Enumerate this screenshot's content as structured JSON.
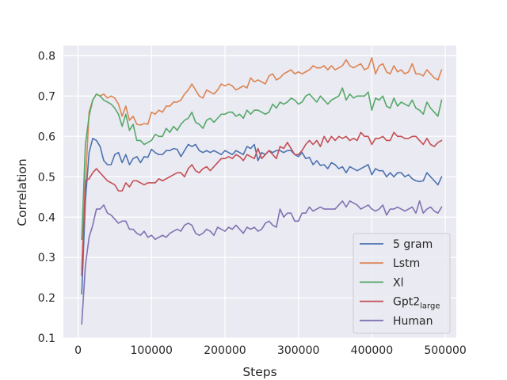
{
  "chart_data": {
    "type": "line",
    "title": "",
    "xlabel": "Steps",
    "ylabel": "Correlation",
    "xlim": [
      -20000,
      515000
    ],
    "ylim": [
      0.1,
      0.825
    ],
    "xticks": [
      0,
      100000,
      200000,
      300000,
      400000,
      500000
    ],
    "xtick_labels": [
      "0",
      "100000",
      "200000",
      "300000",
      "400000",
      "500000"
    ],
    "yticks": [
      0.1,
      0.2,
      0.3,
      0.4,
      0.5,
      0.6,
      0.7,
      0.8
    ],
    "ytick_labels": [
      "0.1",
      "0.2",
      "0.3",
      "0.4",
      "0.5",
      "0.6",
      "0.7",
      "0.8"
    ],
    "grid": true,
    "legend_position": "lower-right",
    "x": [
      5000,
      10000,
      15000,
      20000,
      25000,
      30000,
      35000,
      40000,
      45000,
      50000,
      55000,
      60000,
      65000,
      70000,
      75000,
      80000,
      85000,
      90000,
      95000,
      100000,
      105000,
      110000,
      115000,
      120000,
      125000,
      130000,
      135000,
      140000,
      145000,
      150000,
      155000,
      160000,
      165000,
      170000,
      175000,
      180000,
      185000,
      190000,
      195000,
      200000,
      205000,
      210000,
      215000,
      220000,
      225000,
      230000,
      235000,
      240000,
      245000,
      250000,
      255000,
      260000,
      265000,
      270000,
      275000,
      280000,
      285000,
      290000,
      295000,
      300000,
      305000,
      310000,
      315000,
      320000,
      325000,
      330000,
      335000,
      340000,
      345000,
      350000,
      355000,
      360000,
      365000,
      370000,
      375000,
      380000,
      385000,
      390000,
      395000,
      400000,
      405000,
      410000,
      415000,
      420000,
      425000,
      430000,
      435000,
      440000,
      445000,
      450000,
      455000,
      460000,
      465000,
      470000,
      475000,
      480000,
      485000,
      490000,
      495000
    ],
    "series": [
      {
        "name": "5 gram",
        "color": "#4c72b0",
        "values": [
          0.21,
          0.44,
          0.56,
          0.595,
          0.59,
          0.575,
          0.54,
          0.53,
          0.53,
          0.555,
          0.56,
          0.535,
          0.555,
          0.53,
          0.545,
          0.55,
          0.535,
          0.55,
          0.548,
          0.568,
          0.56,
          0.555,
          0.555,
          0.565,
          0.565,
          0.57,
          0.568,
          0.55,
          0.565,
          0.58,
          0.575,
          0.58,
          0.565,
          0.56,
          0.565,
          0.56,
          0.565,
          0.56,
          0.555,
          0.565,
          0.56,
          0.555,
          0.565,
          0.56,
          0.555,
          0.575,
          0.57,
          0.58,
          0.54,
          0.56,
          0.555,
          0.565,
          0.56,
          0.565,
          0.565,
          0.56,
          0.565,
          0.565,
          0.555,
          0.55,
          0.56,
          0.545,
          0.548,
          0.53,
          0.54,
          0.528,
          0.53,
          0.52,
          0.535,
          0.53,
          0.52,
          0.525,
          0.51,
          0.525,
          0.52,
          0.515,
          0.52,
          0.525,
          0.53,
          0.505,
          0.52,
          0.515,
          0.515,
          0.5,
          0.51,
          0.5,
          0.51,
          0.51,
          0.5,
          0.505,
          0.495,
          0.49,
          0.488,
          0.49,
          0.51,
          0.5,
          0.49,
          0.48,
          0.5
        ]
      },
      {
        "name": "Lstm",
        "color": "#dd8452",
        "values": [
          0.27,
          0.48,
          0.66,
          0.69,
          0.705,
          0.7,
          0.705,
          0.695,
          0.7,
          0.695,
          0.68,
          0.65,
          0.675,
          0.64,
          0.65,
          0.63,
          0.628,
          0.632,
          0.63,
          0.66,
          0.655,
          0.665,
          0.66,
          0.675,
          0.675,
          0.685,
          0.685,
          0.69,
          0.705,
          0.715,
          0.73,
          0.715,
          0.7,
          0.695,
          0.715,
          0.71,
          0.705,
          0.715,
          0.73,
          0.725,
          0.73,
          0.725,
          0.715,
          0.72,
          0.725,
          0.72,
          0.745,
          0.735,
          0.74,
          0.735,
          0.73,
          0.75,
          0.755,
          0.74,
          0.745,
          0.755,
          0.76,
          0.765,
          0.755,
          0.76,
          0.755,
          0.76,
          0.765,
          0.775,
          0.77,
          0.77,
          0.775,
          0.765,
          0.775,
          0.765,
          0.77,
          0.775,
          0.79,
          0.775,
          0.77,
          0.775,
          0.78,
          0.765,
          0.77,
          0.795,
          0.755,
          0.775,
          0.78,
          0.76,
          0.755,
          0.775,
          0.76,
          0.765,
          0.755,
          0.76,
          0.78,
          0.755,
          0.755,
          0.75,
          0.765,
          0.755,
          0.745,
          0.74,
          0.765
        ]
      },
      {
        "name": "Xl",
        "color": "#55a868",
        "values": [
          0.345,
          0.58,
          0.65,
          0.69,
          0.705,
          0.7,
          0.69,
          0.685,
          0.68,
          0.67,
          0.655,
          0.625,
          0.655,
          0.615,
          0.63,
          0.59,
          0.59,
          0.58,
          0.585,
          0.59,
          0.605,
          0.6,
          0.6,
          0.62,
          0.61,
          0.625,
          0.615,
          0.63,
          0.64,
          0.645,
          0.66,
          0.635,
          0.63,
          0.62,
          0.64,
          0.645,
          0.635,
          0.645,
          0.655,
          0.655,
          0.66,
          0.66,
          0.65,
          0.655,
          0.645,
          0.665,
          0.655,
          0.665,
          0.665,
          0.66,
          0.655,
          0.66,
          0.68,
          0.67,
          0.685,
          0.68,
          0.685,
          0.695,
          0.69,
          0.68,
          0.685,
          0.7,
          0.705,
          0.695,
          0.685,
          0.7,
          0.69,
          0.68,
          0.69,
          0.695,
          0.7,
          0.72,
          0.69,
          0.705,
          0.695,
          0.7,
          0.7,
          0.7,
          0.71,
          0.665,
          0.695,
          0.69,
          0.7,
          0.675,
          0.67,
          0.695,
          0.675,
          0.685,
          0.68,
          0.675,
          0.69,
          0.67,
          0.665,
          0.655,
          0.685,
          0.67,
          0.66,
          0.65,
          0.69
        ]
      },
      {
        "name": "Gpt2",
        "name_subscript": "large",
        "color": "#c44e52",
        "values": [
          0.255,
          0.49,
          0.495,
          0.51,
          0.52,
          0.51,
          0.5,
          0.49,
          0.485,
          0.48,
          0.465,
          0.465,
          0.485,
          0.475,
          0.49,
          0.49,
          0.485,
          0.48,
          0.485,
          0.485,
          0.485,
          0.495,
          0.49,
          0.495,
          0.5,
          0.505,
          0.51,
          0.51,
          0.5,
          0.52,
          0.53,
          0.515,
          0.51,
          0.52,
          0.525,
          0.515,
          0.525,
          0.535,
          0.545,
          0.545,
          0.55,
          0.545,
          0.555,
          0.55,
          0.54,
          0.555,
          0.55,
          0.545,
          0.57,
          0.545,
          0.555,
          0.565,
          0.555,
          0.545,
          0.575,
          0.57,
          0.585,
          0.57,
          0.555,
          0.555,
          0.565,
          0.58,
          0.59,
          0.58,
          0.59,
          0.575,
          0.6,
          0.585,
          0.6,
          0.59,
          0.6,
          0.595,
          0.6,
          0.59,
          0.595,
          0.59,
          0.61,
          0.6,
          0.6,
          0.58,
          0.595,
          0.595,
          0.6,
          0.59,
          0.59,
          0.61,
          0.6,
          0.6,
          0.595,
          0.595,
          0.6,
          0.6,
          0.59,
          0.58,
          0.595,
          0.58,
          0.575,
          0.585,
          0.59
        ]
      },
      {
        "name": "Human",
        "color": "#8172b3",
        "values": [
          0.135,
          0.28,
          0.35,
          0.38,
          0.42,
          0.42,
          0.43,
          0.41,
          0.405,
          0.395,
          0.385,
          0.39,
          0.39,
          0.37,
          0.37,
          0.36,
          0.355,
          0.365,
          0.35,
          0.355,
          0.345,
          0.35,
          0.355,
          0.35,
          0.36,
          0.365,
          0.37,
          0.365,
          0.38,
          0.385,
          0.38,
          0.36,
          0.355,
          0.36,
          0.37,
          0.365,
          0.355,
          0.375,
          0.37,
          0.365,
          0.375,
          0.37,
          0.38,
          0.37,
          0.36,
          0.375,
          0.37,
          0.375,
          0.365,
          0.37,
          0.385,
          0.39,
          0.38,
          0.375,
          0.42,
          0.4,
          0.41,
          0.41,
          0.39,
          0.39,
          0.41,
          0.41,
          0.425,
          0.415,
          0.42,
          0.425,
          0.42,
          0.42,
          0.42,
          0.42,
          0.43,
          0.44,
          0.425,
          0.44,
          0.435,
          0.43,
          0.42,
          0.425,
          0.43,
          0.42,
          0.415,
          0.42,
          0.43,
          0.405,
          0.42,
          0.42,
          0.425,
          0.42,
          0.415,
          0.42,
          0.425,
          0.41,
          0.44,
          0.41,
          0.42,
          0.425,
          0.415,
          0.41,
          0.425
        ]
      }
    ]
  }
}
